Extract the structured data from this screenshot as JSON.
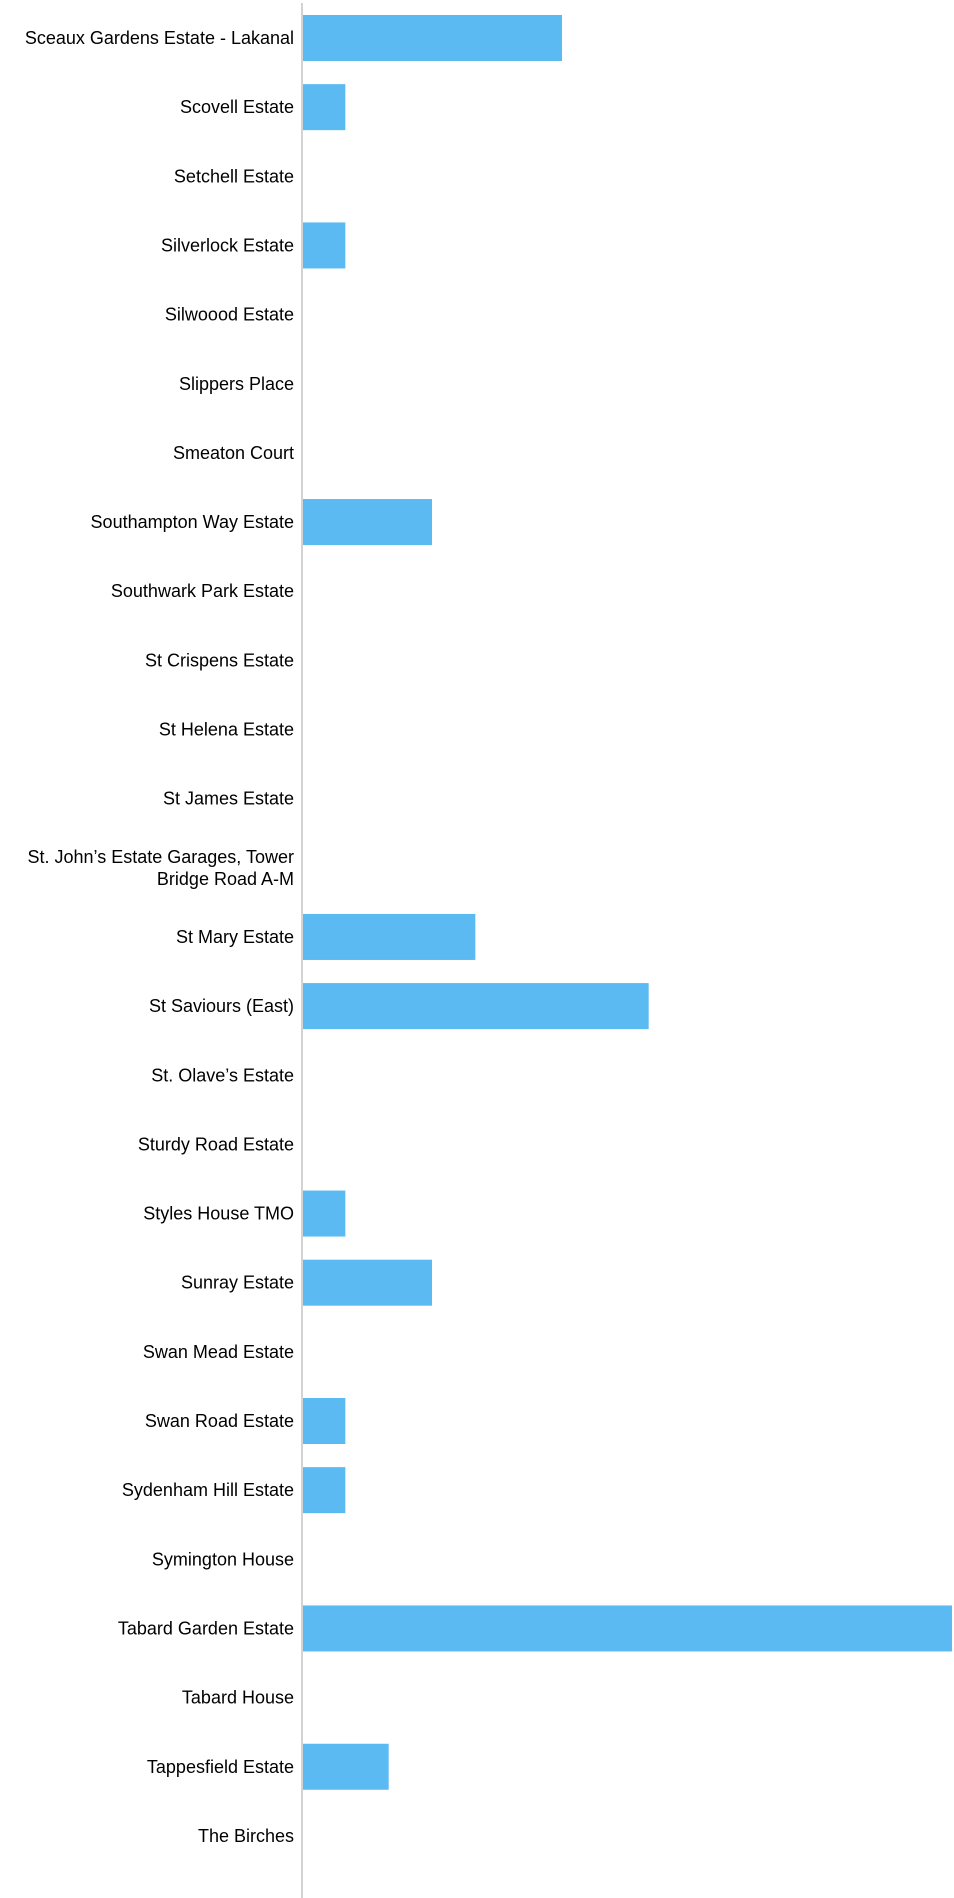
{
  "chart_data": {
    "type": "bar",
    "orientation": "horizontal",
    "categories": [
      "Sceaux Gardens Estate - Lakanal",
      "Scovell Estate",
      "Setchell Estate",
      "Silverlock Estate",
      "Silwoood Estate",
      "Slippers Place",
      "Smeaton Court",
      "Southampton Way Estate",
      "Southwark Park Estate",
      "St Crispens Estate",
      "St Helena Estate",
      "St James Estate",
      "St. John’s Estate Garages, Tower Bridge Road A-M",
      "St Mary Estate",
      "St Saviours (East)",
      "St. Olave’s Estate",
      "Sturdy Road Estate",
      "Styles House TMO",
      "Sunray Estate",
      "Swan Mead Estate",
      "Swan Road Estate",
      "Sydenham Hill Estate",
      "Symington House",
      "Tabard Garden Estate",
      "Tabard House",
      "Tappesfield Estate",
      "The Birches"
    ],
    "category_lines": [
      [
        "Sceaux Gardens Estate - Lakanal"
      ],
      [
        "Scovell Estate"
      ],
      [
        "Setchell Estate"
      ],
      [
        "Silverlock Estate"
      ],
      [
        "Silwoood Estate"
      ],
      [
        "Slippers Place"
      ],
      [
        "Smeaton Court"
      ],
      [
        "Southampton Way Estate"
      ],
      [
        "Southwark Park Estate"
      ],
      [
        "St Crispens Estate"
      ],
      [
        "St Helena Estate"
      ],
      [
        "St James Estate"
      ],
      [
        "St. John’s Estate Garages, Tower",
        "Bridge Road A-M"
      ],
      [
        "St Mary Estate"
      ],
      [
        "St Saviours (East)"
      ],
      [
        "St. Olave’s Estate"
      ],
      [
        "Sturdy Road Estate"
      ],
      [
        "Styles House TMO"
      ],
      [
        "Sunray Estate"
      ],
      [
        "Swan Mead Estate"
      ],
      [
        "Swan Road Estate"
      ],
      [
        "Sydenham Hill Estate"
      ],
      [
        "Symington House"
      ],
      [
        "Tabard Garden Estate"
      ],
      [
        "Tabard House"
      ],
      [
        "Tappesfield Estate"
      ],
      [
        "The Birches"
      ]
    ],
    "values": [
      6,
      1,
      0,
      1,
      0,
      0,
      0,
      3,
      0,
      0,
      0,
      0,
      0,
      4,
      8,
      0,
      0,
      1,
      3,
      0,
      1,
      1,
      0,
      15,
      0,
      2,
      0
    ],
    "xlim": [
      0,
      15
    ],
    "title": "",
    "xlabel": "",
    "ylabel": "",
    "grid": false,
    "bar_color": "#5bbaf1",
    "axis_color": "#d3d3d3"
  }
}
